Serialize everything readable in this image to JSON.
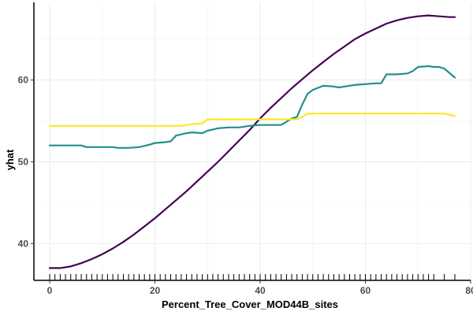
{
  "chart_data": {
    "type": "line",
    "xlabel": "Percent_Tree_Cover_MOD44B_sites",
    "ylabel": "yhat",
    "xlim": [
      -3,
      80
    ],
    "ylim": [
      35.5,
      69.5
    ],
    "x_ticks": [
      0,
      20,
      40,
      60,
      80
    ],
    "y_ticks": [
      40,
      50,
      60
    ],
    "grid": true,
    "legend": "none",
    "rug_x": [
      0,
      1,
      2,
      3,
      4,
      5,
      6,
      7,
      8,
      9,
      10,
      11,
      12,
      13,
      14,
      15,
      16,
      17,
      18,
      19,
      20,
      21,
      22,
      23,
      24,
      25,
      26,
      27,
      28,
      29,
      30,
      31,
      32,
      33,
      34,
      35,
      36,
      37,
      38,
      39,
      40,
      41,
      42,
      43,
      44,
      45,
      46,
      47,
      48,
      49,
      50,
      51,
      52,
      53,
      54,
      55,
      56,
      57,
      58,
      59,
      60,
      61,
      62,
      63,
      64,
      65,
      66,
      67,
      68,
      69,
      70,
      71,
      72,
      73,
      75,
      77
    ],
    "series": [
      {
        "color": "#440154",
        "points": [
          [
            0,
            37.0
          ],
          [
            2,
            37.0
          ],
          [
            4,
            37.2
          ],
          [
            6,
            37.6
          ],
          [
            8,
            38.1
          ],
          [
            10,
            38.7
          ],
          [
            12,
            39.4
          ],
          [
            14,
            40.2
          ],
          [
            16,
            41.1
          ],
          [
            18,
            42.1
          ],
          [
            20,
            43.1
          ],
          [
            22,
            44.2
          ],
          [
            24,
            45.3
          ],
          [
            26,
            46.4
          ],
          [
            28,
            47.6
          ],
          [
            30,
            48.8
          ],
          [
            32,
            50.0
          ],
          [
            34,
            51.3
          ],
          [
            36,
            52.6
          ],
          [
            38,
            53.9
          ],
          [
            40,
            55.3
          ],
          [
            42,
            56.6
          ],
          [
            44,
            57.8
          ],
          [
            46,
            59.0
          ],
          [
            48,
            60.1
          ],
          [
            50,
            61.2
          ],
          [
            52,
            62.2
          ],
          [
            54,
            63.2
          ],
          [
            56,
            64.1
          ],
          [
            58,
            65.0
          ],
          [
            60,
            65.7
          ],
          [
            62,
            66.3
          ],
          [
            64,
            66.9
          ],
          [
            66,
            67.3
          ],
          [
            68,
            67.6
          ],
          [
            70,
            67.8
          ],
          [
            72,
            67.9
          ],
          [
            74,
            67.8
          ],
          [
            76,
            67.7
          ],
          [
            77,
            67.7
          ]
        ]
      },
      {
        "color": "#21908C",
        "points": [
          [
            0,
            52.0
          ],
          [
            3,
            52.0
          ],
          [
            6,
            52.0
          ],
          [
            7,
            51.8
          ],
          [
            10,
            51.8
          ],
          [
            12,
            51.8
          ],
          [
            13,
            51.7
          ],
          [
            15,
            51.7
          ],
          [
            17,
            51.8
          ],
          [
            19,
            52.1
          ],
          [
            20,
            52.3
          ],
          [
            22,
            52.4
          ],
          [
            23,
            52.5
          ],
          [
            24,
            53.2
          ],
          [
            26,
            53.5
          ],
          [
            27,
            53.6
          ],
          [
            29,
            53.5
          ],
          [
            30,
            53.8
          ],
          [
            32,
            54.1
          ],
          [
            34,
            54.2
          ],
          [
            36,
            54.2
          ],
          [
            38,
            54.4
          ],
          [
            40,
            54.5
          ],
          [
            42,
            54.5
          ],
          [
            44,
            54.5
          ],
          [
            45,
            54.9
          ],
          [
            46,
            55.3
          ],
          [
            47,
            55.5
          ],
          [
            48,
            57.0
          ],
          [
            49,
            58.3
          ],
          [
            50,
            58.8
          ],
          [
            52,
            59.3
          ],
          [
            54,
            59.2
          ],
          [
            55,
            59.1
          ],
          [
            56,
            59.2
          ],
          [
            58,
            59.4
          ],
          [
            60,
            59.5
          ],
          [
            62,
            59.6
          ],
          [
            63,
            59.6
          ],
          [
            64,
            60.7
          ],
          [
            66,
            60.7
          ],
          [
            68,
            60.8
          ],
          [
            69,
            61.1
          ],
          [
            70,
            61.6
          ],
          [
            72,
            61.7
          ],
          [
            73,
            61.6
          ],
          [
            74,
            61.6
          ],
          [
            75,
            61.4
          ],
          [
            77,
            60.3
          ]
        ]
      },
      {
        "color": "#FDE725",
        "points": [
          [
            0,
            54.4
          ],
          [
            10,
            54.4
          ],
          [
            20,
            54.4
          ],
          [
            25,
            54.4
          ],
          [
            27,
            54.6
          ],
          [
            29,
            54.7
          ],
          [
            30,
            55.2
          ],
          [
            35,
            55.2
          ],
          [
            40,
            55.2
          ],
          [
            45,
            55.2
          ],
          [
            47,
            55.2
          ],
          [
            48,
            55.5
          ],
          [
            49,
            55.9
          ],
          [
            55,
            55.9
          ],
          [
            60,
            55.9
          ],
          [
            65,
            55.9
          ],
          [
            70,
            55.9
          ],
          [
            75,
            55.9
          ],
          [
            77,
            55.6
          ]
        ]
      }
    ]
  }
}
